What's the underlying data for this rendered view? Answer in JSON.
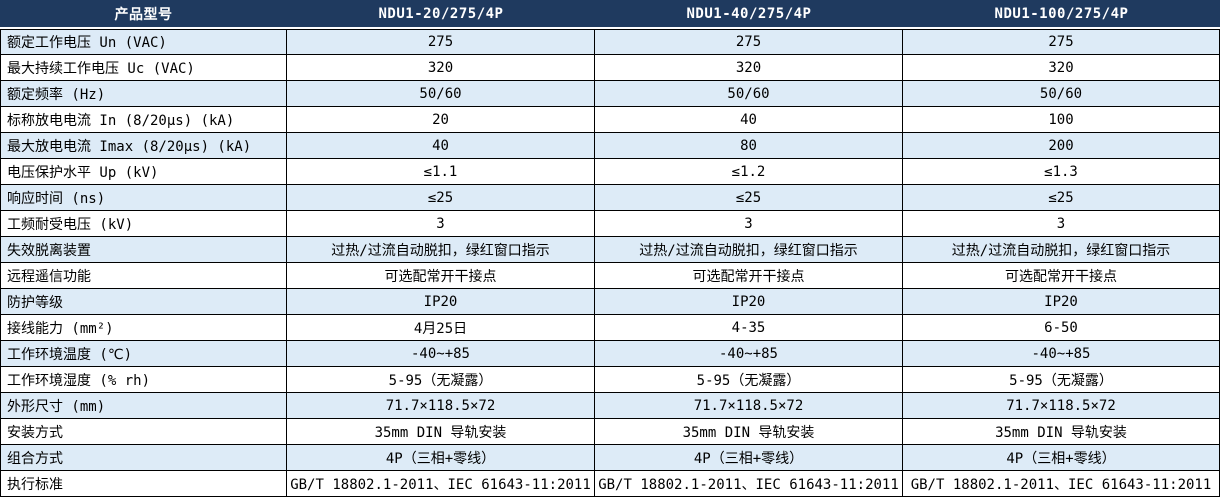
{
  "colors": {
    "header_bg": "#1f3a5f",
    "header_text": "#ffffff",
    "row_alt_bg": "#ddebf7",
    "row_bg": "#ffffff",
    "border": "#000000",
    "text": "#000000"
  },
  "table": {
    "header": {
      "param_col": "产品型号",
      "models": [
        "NDU1-20/275/4P",
        "NDU1-40/275/4P",
        "NDU1-100/275/4P"
      ]
    },
    "rows": [
      {
        "label": "额定工作电压 Un (VAC)",
        "values": [
          "275",
          "275",
          "275"
        ]
      },
      {
        "label": "最大持续工作电压 Uc (VAC)",
        "values": [
          "320",
          "320",
          "320"
        ]
      },
      {
        "label": "额定频率 (Hz)",
        "values": [
          "50/60",
          "50/60",
          "50/60"
        ]
      },
      {
        "label": "标称放电电流 In (8/20μs) (kA)",
        "values": [
          "20",
          "40",
          "100"
        ]
      },
      {
        "label": "最大放电电流 Imax (8/20μs) (kA)",
        "values": [
          "40",
          "80",
          "200"
        ]
      },
      {
        "label": "电压保护水平 Up (kV)",
        "values": [
          "≤1.1",
          "≤1.2",
          "≤1.3"
        ]
      },
      {
        "label": "响应时间 (ns)",
        "values": [
          "≤25",
          "≤25",
          "≤25"
        ]
      },
      {
        "label": "工频耐受电压 (kV)",
        "values": [
          "3",
          "3",
          "3"
        ]
      },
      {
        "label": "失效脱离装置",
        "values": [
          "过热/过流自动脱扣，绿红窗口指示",
          "过热/过流自动脱扣，绿红窗口指示",
          "过热/过流自动脱扣，绿红窗口指示"
        ]
      },
      {
        "label": "远程遥信功能",
        "values": [
          "可选配常开干接点",
          "可选配常开干接点",
          "可选配常开干接点"
        ]
      },
      {
        "label": "防护等级",
        "values": [
          "IP20",
          "IP20",
          "IP20"
        ]
      },
      {
        "label": "接线能力 (mm²)",
        "values": [
          "4月25日",
          "4-35",
          "6-50"
        ]
      },
      {
        "label": "工作环境温度 (℃)",
        "values": [
          "-40~+85",
          "-40~+85",
          "-40~+85"
        ]
      },
      {
        "label": "工作环境湿度 (% rh)",
        "values": [
          "5-95（无凝露）",
          "5-95（无凝露）",
          "5-95（无凝露）"
        ]
      },
      {
        "label": "外形尺寸 (mm)",
        "values": [
          "71.7×118.5×72",
          "71.7×118.5×72",
          "71.7×118.5×72"
        ]
      },
      {
        "label": "安装方式",
        "values": [
          "35mm DIN 导轨安装",
          "35mm DIN 导轨安装",
          "35mm DIN 导轨安装"
        ]
      },
      {
        "label": "组合方式",
        "values": [
          "4P（三相+零线）",
          "4P（三相+零线）",
          "4P（三相+零线）"
        ]
      },
      {
        "label": "执行标准",
        "values": [
          "GB/T 18802.1-2011、IEC 61643-11:2011",
          "GB/T 18802.1-2011、IEC 61643-11:2011",
          "GB/T 18802.1-2011、IEC 61643-11:2011"
        ]
      }
    ]
  }
}
